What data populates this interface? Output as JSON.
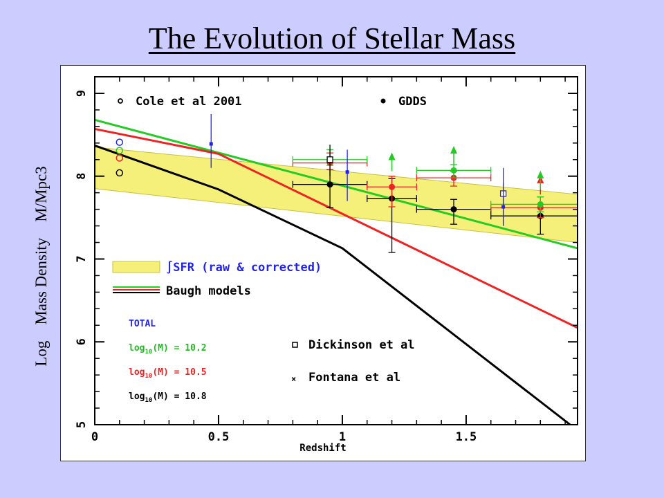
{
  "slide": {
    "title": "The Evolution of Stellar Mass",
    "ylabel": "Log    Mass Density    M/Mpc3"
  },
  "chart_data": {
    "type": "line",
    "title": "The Evolution of Stellar Mass",
    "xlabel": "Redshift",
    "ylabel": "Log    Mass Density    M/Mpc3",
    "xlim": [
      0,
      1.95
    ],
    "ylim": [
      5,
      9.2
    ],
    "x_ticks": [
      "0",
      "0.5",
      "1",
      "1.5"
    ],
    "y_ticks": [
      "5",
      "6",
      "7",
      "8",
      "9"
    ],
    "legend": {
      "cole_label": "Cole et al 2001",
      "gdds_label": "GDDS",
      "band_label": "∫SFR (raw & corrected)",
      "baugh_label": "Baugh models",
      "dickinson_label": "Dickinson et al",
      "fontana_label": "Fontana et al",
      "total_label": "TOTAL",
      "mass_labels": [
        {
          "prefix": "log",
          "sub": "10",
          "suffix": "(M) = 10.2",
          "color": "#22bb22"
        },
        {
          "prefix": "log",
          "sub": "10",
          "suffix": "(M) = 10.5",
          "color": "#ee2222"
        },
        {
          "prefix": "log",
          "sub": "10",
          "suffix": "(M) = 10.8",
          "color": "#000000"
        }
      ]
    },
    "colors": {
      "band_fill": "#f5f07a",
      "band_edge": "#c8c040",
      "green": "#22cc22",
      "red": "#ee2222",
      "black": "#000000",
      "blue": "#2222ee"
    },
    "sfr_band": {
      "x": [
        0,
        1.95
      ],
      "upper": [
        8.35,
        7.78
      ],
      "lower": [
        7.85,
        7.2
      ]
    },
    "series": [
      {
        "name": "log10(M) = 10.2",
        "color": "#22cc22",
        "x": [
          0,
          1.95
        ],
        "y": [
          8.68,
          7.13
        ]
      },
      {
        "name": "log10(M) = 10.5",
        "color": "#ee2222",
        "x": [
          0,
          0.5,
          1.95
        ],
        "y": [
          8.57,
          8.27,
          6.17
        ]
      },
      {
        "name": "log10(M) = 10.8",
        "color": "#000000",
        "x": [
          0,
          0.5,
          1.0,
          1.92
        ],
        "y": [
          8.37,
          7.84,
          7.13,
          5.0
        ]
      }
    ],
    "cole_points": [
      {
        "x": 0.1,
        "y": 8.41,
        "color": "#2222ee"
      },
      {
        "x": 0.1,
        "y": 8.31,
        "color": "#22cc22"
      },
      {
        "x": 0.1,
        "y": 8.22,
        "color": "#ee2222"
      },
      {
        "x": 0.1,
        "y": 8.04,
        "color": "#000000"
      }
    ],
    "gdds_points": [
      {
        "x": 0.95,
        "y": 7.9,
        "xlo": 0.8,
        "xhi": 1.1,
        "ylo": 7.62,
        "yhi": 8.08,
        "color": "#000000"
      },
      {
        "x": 0.95,
        "y": 8.16,
        "xlo": 0.8,
        "xhi": 1.1,
        "ylo": 8.08,
        "yhi": 8.28,
        "color": "#ee2222"
      },
      {
        "x": 0.95,
        "y": 8.2,
        "xlo": 0.8,
        "xhi": 1.1,
        "ylo": 8.13,
        "yhi": 8.32,
        "color": "#22cc22"
      },
      {
        "x": 1.2,
        "y": 7.73,
        "xlo": 1.1,
        "xhi": 1.3,
        "ylo": 7.08,
        "yhi": 7.97,
        "color": "#000000"
      },
      {
        "x": 1.2,
        "y": 7.87,
        "xlo": 1.1,
        "xhi": 1.3,
        "ylo": 7.63,
        "yhi": 8.0,
        "color": "#ee2222"
      },
      {
        "x": 1.45,
        "y": 7.6,
        "xlo": 1.3,
        "xhi": 1.6,
        "ylo": 7.42,
        "yhi": 7.72,
        "color": "#000000"
      },
      {
        "x": 1.45,
        "y": 7.98,
        "xlo": 1.3,
        "xhi": 1.6,
        "ylo": 7.88,
        "yhi": 8.06,
        "color": "#ee2222"
      },
      {
        "x": 1.45,
        "y": 8.07,
        "xlo": 1.3,
        "xhi": 1.6,
        "ylo": 7.98,
        "yhi": 8.14,
        "color": "#22cc22"
      },
      {
        "x": 1.8,
        "y": 7.52,
        "xlo": 1.6,
        "xhi": 1.95,
        "ylo": 7.3,
        "yhi": 7.66,
        "color": "#000000"
      },
      {
        "x": 1.8,
        "y": 7.62,
        "xlo": 1.6,
        "xhi": 1.95,
        "ylo": 7.5,
        "yhi": 7.75,
        "color": "#ee2222"
      },
      {
        "x": 1.8,
        "y": 7.66,
        "xlo": 1.6,
        "xhi": 1.95,
        "ylo": 7.57,
        "yhi": 7.75,
        "color": "#22cc22"
      }
    ],
    "lower_limit_arrows": [
      {
        "x": 1.2,
        "y": 8.06,
        "color": "#22cc22"
      },
      {
        "x": 1.45,
        "y": 8.14,
        "color": "#22cc22"
      },
      {
        "x": 1.8,
        "y": 7.78,
        "color": "#ee2222"
      },
      {
        "x": 1.8,
        "y": 7.84,
        "color": "#22cc22"
      }
    ],
    "dickinson_points": [
      {
        "x": 0.95,
        "y": 8.2,
        "ylo": 8.0,
        "yhi": 8.38,
        "color": "#000000"
      },
      {
        "x": 1.65,
        "y": 7.79,
        "ylo": 7.4,
        "yhi": 8.1,
        "color": "#2222ee"
      }
    ],
    "fontana_points": [
      {
        "x": 0.47,
        "y": 8.39,
        "ylo": 8.1,
        "yhi": 8.75,
        "color": "#2222ee"
      },
      {
        "x": 1.02,
        "y": 8.05,
        "ylo": 7.7,
        "yhi": 8.32,
        "color": "#2222ee"
      },
      {
        "x": 1.65,
        "y": 7.63,
        "ylo": 7.4,
        "yhi": 7.92,
        "color": "#2222ee"
      }
    ]
  }
}
